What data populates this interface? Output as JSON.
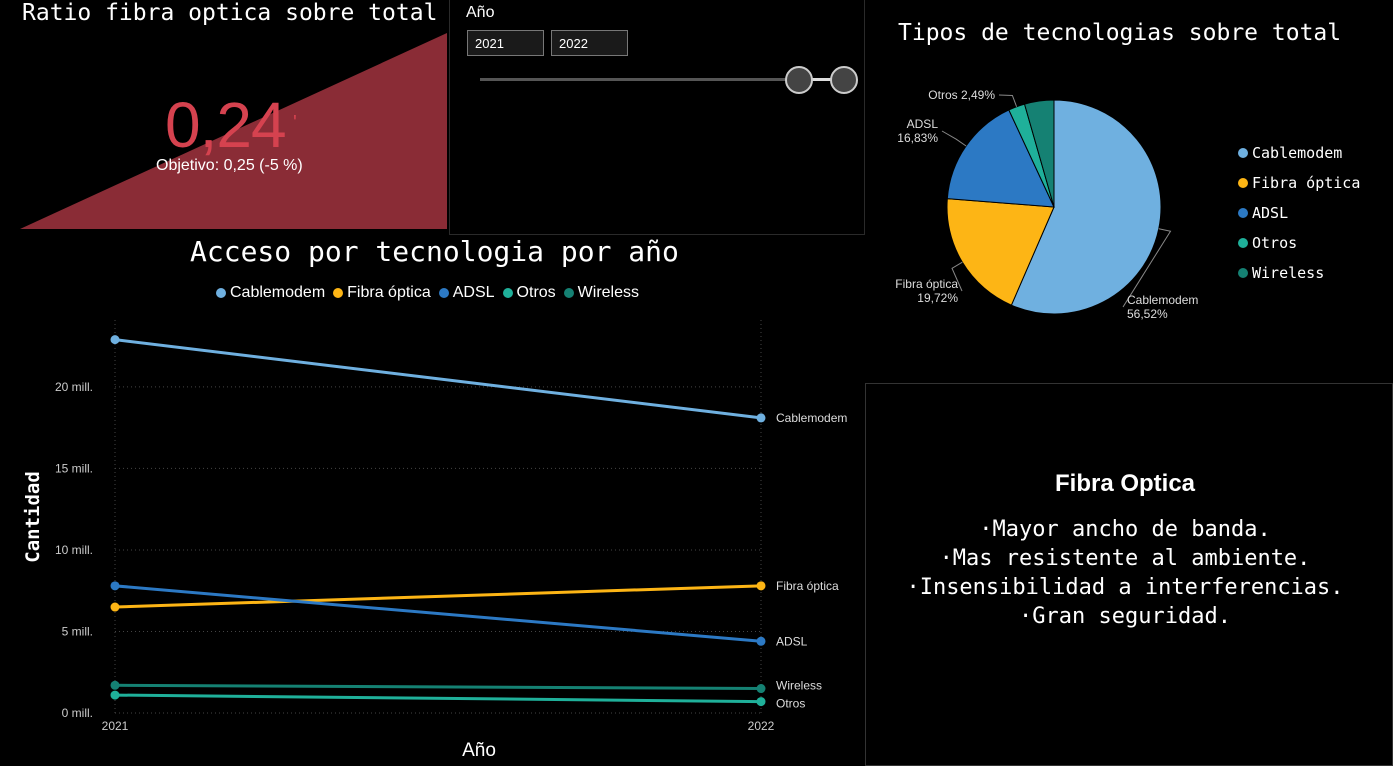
{
  "kpi": {
    "title": "Ratio fibra optica sobre total",
    "value": "0,24",
    "value_cut": "'",
    "target_label": "Objetivo: 0,25 (-5 %)",
    "color": "#8a2c36",
    "value_color": "#d5424f"
  },
  "slicer": {
    "title": "Año",
    "start": "2021",
    "end": "2022"
  },
  "text_box": {
    "title": "Fibra Optica",
    "lines": [
      "·Mayor ancho de banda.",
      "·Mas resistente al ambiente.",
      "·Insensibilidad a interferencias.",
      "·Gran seguridad."
    ]
  },
  "chart_data": [
    {
      "type": "line",
      "title": "Acceso por tecnologia por año",
      "xlabel": "Año",
      "ylabel": "Cantidad",
      "x": [
        "2021",
        "2022"
      ],
      "ylim": [
        0,
        23
      ],
      "yticks": [
        0,
        5,
        10,
        15,
        20
      ],
      "ytick_labels": [
        "0 mill.",
        "5 mill.",
        "10 mill.",
        "15 mill.",
        "20 mill."
      ],
      "legend_position": "top",
      "grid": true,
      "series": [
        {
          "name": "Cablemodem",
          "values": [
            22.9,
            18.1
          ],
          "color": "#6fb0e0",
          "end_label": "Cablemodem"
        },
        {
          "name": "Fibra óptica",
          "values": [
            6.5,
            7.8
          ],
          "color": "#fdb515",
          "end_label": "Fibra óptica"
        },
        {
          "name": "ADSL",
          "values": [
            7.8,
            4.4
          ],
          "color": "#2c79c4",
          "end_label": "ADSL"
        },
        {
          "name": "Otros",
          "values": [
            1.1,
            0.7
          ],
          "color": "#1fb09a",
          "end_label": "Otros"
        },
        {
          "name": "Wireless",
          "values": [
            1.7,
            1.5
          ],
          "color": "#158173",
          "end_label": "Wireless"
        }
      ]
    },
    {
      "type": "pie",
      "title": "Tipos de tecnologias sobre total",
      "legend_position": "right",
      "slices": [
        {
          "name": "Cablemodem",
          "value": 56.52,
          "label": "Cablemodem\n56,52%",
          "color": "#6fb0e0"
        },
        {
          "name": "Fibra óptica",
          "value": 19.72,
          "label": "Fibra óptica\n19,72%",
          "color": "#fdb515"
        },
        {
          "name": "ADSL",
          "value": 16.83,
          "label": "ADSL\n16,83%",
          "color": "#2c79c4"
        },
        {
          "name": "Otros",
          "value": 2.49,
          "label": "Otros 2,49%",
          "color": "#1fb09a"
        },
        {
          "name": "Wireless",
          "value": 4.44,
          "label": "",
          "color": "#158173"
        }
      ]
    }
  ]
}
